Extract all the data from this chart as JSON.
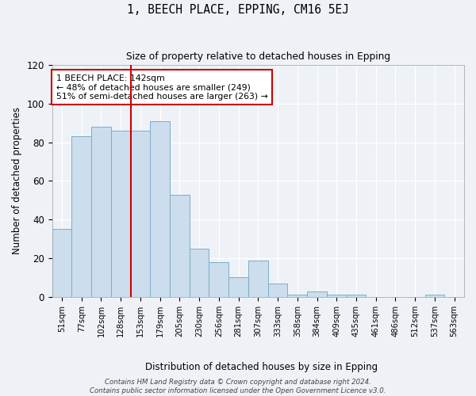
{
  "title": "1, BEECH PLACE, EPPING, CM16 5EJ",
  "subtitle": "Size of property relative to detached houses in Epping",
  "xlabel": "Distribution of detached houses by size in Epping",
  "ylabel": "Number of detached properties",
  "categories": [
    "51sqm",
    "77sqm",
    "102sqm",
    "128sqm",
    "153sqm",
    "179sqm",
    "205sqm",
    "230sqm",
    "256sqm",
    "281sqm",
    "307sqm",
    "333sqm",
    "358sqm",
    "384sqm",
    "409sqm",
    "435sqm",
    "461sqm",
    "486sqm",
    "512sqm",
    "537sqm",
    "563sqm"
  ],
  "bar_heights": [
    35,
    83,
    88,
    86,
    86,
    91,
    53,
    25,
    18,
    10,
    19,
    7,
    1,
    3,
    1,
    1,
    0,
    0,
    0,
    1,
    0
  ],
  "bar_color": "#ccdded",
  "bar_edge_color": "#7aaec8",
  "vline_x": 3.5,
  "vline_color": "#cc0000",
  "annotation_text": "1 BEECH PLACE: 142sqm\n← 48% of detached houses are smaller (249)\n51% of semi-detached houses are larger (263) →",
  "annotation_box_color": "white",
  "annotation_box_edge": "#cc0000",
  "ylim": [
    0,
    120
  ],
  "yticks": [
    0,
    20,
    40,
    60,
    80,
    100,
    120
  ],
  "footer": "Contains HM Land Registry data © Crown copyright and database right 2024.\nContains public sector information licensed under the Open Government Licence v3.0.",
  "bg_color": "#eef2f7",
  "grid_color": "white"
}
